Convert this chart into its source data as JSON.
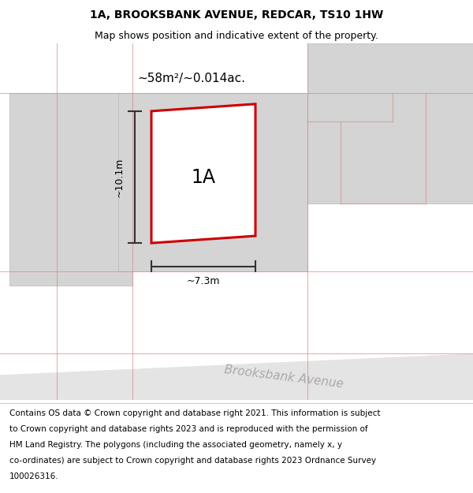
{
  "title": "1A, BROOKSBANK AVENUE, REDCAR, TS10 1HW",
  "subtitle": "Map shows position and indicative extent of the property.",
  "footer_lines": [
    "Contains OS data © Crown copyright and database right 2021. This information is subject",
    "to Crown copyright and database rights 2023 and is reproduced with the permission of",
    "HM Land Registry. The polygons (including the associated geometry, namely x, y",
    "co-ordinates) are subject to Crown copyright and database rights 2023 Ordnance Survey",
    "100026316."
  ],
  "map_bg": "#f2f2f2",
  "road_color": "#e4e4e4",
  "building_color": "#d4d4d4",
  "building_edge_color": "#bbbbbb",
  "red_outline_color": "#cc0000",
  "dimension_color": "#333333",
  "area_text": "~58m²/~0.014ac.",
  "label_1a": "1A",
  "dim_height": "~10.1m",
  "dim_width": "~7.3m",
  "road_label": "Brooksbank Avenue",
  "road_label_color": "#aaaaaa",
  "title_fontsize": 10,
  "subtitle_fontsize": 9,
  "footer_fontsize": 7.5
}
